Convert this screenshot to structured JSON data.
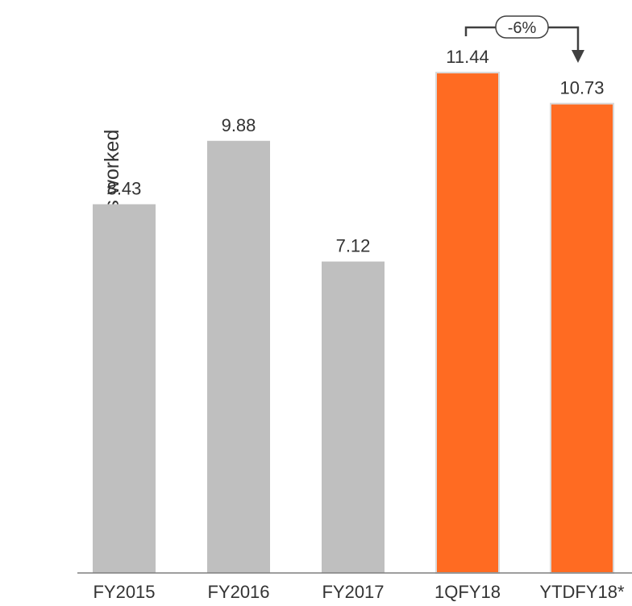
{
  "chart_data": {
    "type": "bar",
    "categories": [
      "FY2015",
      "FY2016",
      "FY2017",
      "1QFY18",
      "YTDFY18*"
    ],
    "values": [
      8.43,
      9.88,
      7.12,
      11.44,
      10.73
    ],
    "value_labels": [
      "8.43",
      "9.88",
      "7.12",
      "11.44",
      "10.73"
    ],
    "bar_colors": [
      "#bfbfbf",
      "#bfbfbf",
      "#bfbfbf",
      "#ff6b22",
      "#ff6b22"
    ],
    "title": "",
    "xlabel": "",
    "ylabel": "Incidents per million person-hours worked",
    "ylim": [
      0,
      13.1
    ],
    "grid": false,
    "legend": "none",
    "annotation": {
      "text": "-6%",
      "from": "1QFY18",
      "to": "YTDFY18*",
      "arrow_color": "#404040"
    }
  }
}
